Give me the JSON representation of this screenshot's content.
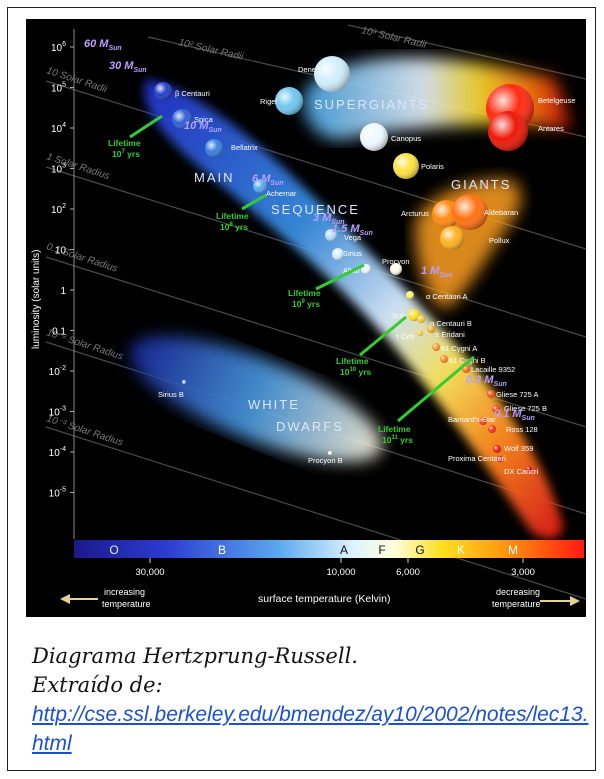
{
  "diagram": {
    "y_axis_label": "luminosity (solar units)",
    "x_axis_label": "surface temperature (Kelvin)",
    "y_ticks": [
      {
        "base": "10",
        "exp": "6"
      },
      {
        "base": "10",
        "exp": "5"
      },
      {
        "base": "10",
        "exp": "4"
      },
      {
        "base": "10",
        "exp": "3"
      },
      {
        "base": "10",
        "exp": "2"
      },
      {
        "base": "10",
        "exp": ""
      },
      {
        "base": "1",
        "exp": ""
      },
      {
        "base": "0.1",
        "exp": ""
      },
      {
        "base": "10",
        "exp": "-2"
      },
      {
        "base": "10",
        "exp": "-3"
      },
      {
        "base": "10",
        "exp": "-4"
      },
      {
        "base": "10",
        "exp": "-5"
      }
    ],
    "x_ticks": [
      "30,000",
      "10,000",
      "6,000",
      "3,000"
    ],
    "spectral_classes": [
      "O",
      "B",
      "A",
      "F",
      "G",
      "K",
      "M"
    ],
    "increasing_label_1": "increasing",
    "increasing_label_2": "temperature",
    "decreasing_label_1": "decreasing",
    "decreasing_label_2": "temperature",
    "radius_lines": [
      "10² Solar Radii",
      "10³ Solar Radii",
      "10 Solar Radii",
      "1 Solar Radius",
      "0.1 Solar Radius",
      "10⁻² Solar Radius",
      "10⁻³ Solar Radius"
    ],
    "regions": {
      "supergiants": "SUPERGIANTS",
      "giants": "GIANTS",
      "main": "MAIN",
      "sequence": "SEQUENCE",
      "white": "WHITE",
      "dwarfs": "DWARFS"
    },
    "masses": [
      "60",
      "30",
      "10",
      "6",
      "3",
      "1.5",
      "1",
      "0.3",
      "0.1"
    ],
    "mass_unit": "M",
    "mass_sub": "Sun",
    "lifetimes": [
      {
        "prefix": "Lifetime",
        "base": "10",
        "exp": "7",
        "unit": "yrs"
      },
      {
        "prefix": "Lifetime",
        "base": "10",
        "exp": "8",
        "unit": "yrs"
      },
      {
        "prefix": "Lifetime",
        "base": "10",
        "exp": "9",
        "unit": "yrs"
      },
      {
        "prefix": "Lifetime",
        "base": "10",
        "exp": "10",
        "unit": "yrs"
      },
      {
        "prefix": "Lifetime",
        "base": "10",
        "exp": "11",
        "unit": "yrs"
      }
    ],
    "stars": [
      "β Centauri",
      "Spica",
      "Bellatrix",
      "Achernar",
      "Vega",
      "Sirius",
      "Altair",
      "Procyon",
      "α Centauri A",
      "Sun",
      "α Centauri B",
      "ε Eridani",
      "τ Ceti",
      "61 Cygni A",
      "61 Cygni B",
      "Lacaille 9352",
      "Gliese 725 A",
      "Gliese 725 B",
      "Barnard's Star",
      "Ross 128",
      "Wolf 359",
      "Proxima Centauri",
      "DX Cancri",
      "Deneb",
      "Rigel",
      "Canopus",
      "Polaris",
      "Betelgeuse",
      "Antares",
      "Arcturus",
      "Aldebaran",
      "Pollux",
      "Sirius B",
      "Procyon B"
    ],
    "colors": {
      "background": "#000000",
      "lifetime": "#33cc33",
      "mass": "#b8a0ff",
      "region_label": "#dde6ff"
    }
  },
  "caption": {
    "line1": "Diagrama Hertzprung-Russell.",
    "line2": "Extraído de:",
    "link": "http://cse.ssl.berkeley.edu/bmendez/ay10/2002/notes/lec13.html"
  }
}
